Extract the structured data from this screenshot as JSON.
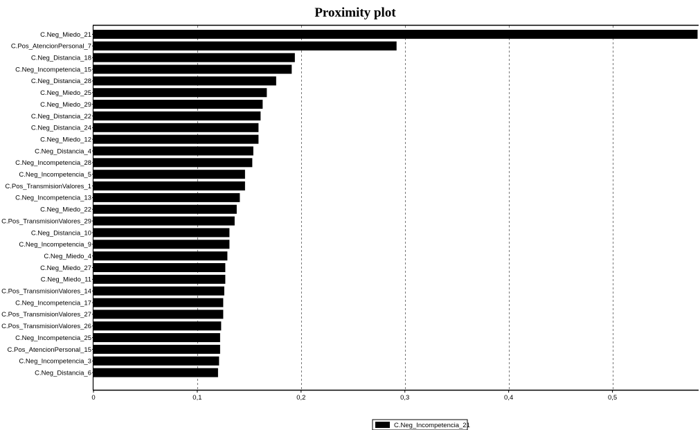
{
  "chart_data": {
    "type": "bar",
    "orientation": "horizontal",
    "title": "Proximity plot",
    "xlabel": "",
    "ylabel": "",
    "xlim": [
      0,
      0.583
    ],
    "xticks": [
      0,
      0.1,
      0.2,
      0.3,
      0.4,
      0.5
    ],
    "xtick_labels": [
      "0",
      "0,1",
      "0,2",
      "0,3",
      "0,4",
      "0,5"
    ],
    "grid": "vertical dashed",
    "legend_position": "bottom-center",
    "bar_color": "#000000",
    "categories": [
      "C.Neg_Miedo_21",
      "C.Pos_AtencionPersonal_7",
      "C.Neg_Distancia_18",
      "C.Neg_Incompetencia_15",
      "C.Neg_Distancia_28",
      "C.Neg_Miedo_25",
      "C.Neg_Miedo_29",
      "C.Neg_Distancia_22",
      "C.Neg_Distancia_24",
      "C.Neg_Miedo_12",
      "C.Neg_Distancia_4",
      "C.Neg_Incompetencia_28",
      "C.Neg_Incompetencia_5",
      "C.Pos_TransmisionValores_1",
      "C.Neg_Incompetencia_13",
      "C.Neg_Miedo_22",
      "C.Pos_TransmisionValores_29",
      "C.Neg_Distancia_10",
      "C.Neg_Incompetencia_9",
      "C.Neg_Miedo_4",
      "C.Neg_Miedo_27",
      "C.Neg_Miedo_11",
      "C.Pos_TransmisionValores_14",
      "C.Neg_Incompetencia_17",
      "C.Pos_TransmisionValores_27",
      "C.Pos_TransmisionValores_26",
      "C.Neg_Incompetencia_25",
      "C.Pos_AtencionPersonal_15",
      "C.Neg_Incompetencia_3",
      "C.Neg_Distancia_6"
    ],
    "series": [
      {
        "name": "C.Neg_Incompetencia_21",
        "values": [
          0.582,
          0.292,
          0.194,
          0.191,
          0.176,
          0.167,
          0.163,
          0.161,
          0.159,
          0.159,
          0.154,
          0.153,
          0.146,
          0.146,
          0.141,
          0.138,
          0.136,
          0.131,
          0.131,
          0.129,
          0.127,
          0.127,
          0.126,
          0.125,
          0.125,
          0.123,
          0.122,
          0.122,
          0.121,
          0.12
        ]
      }
    ]
  }
}
